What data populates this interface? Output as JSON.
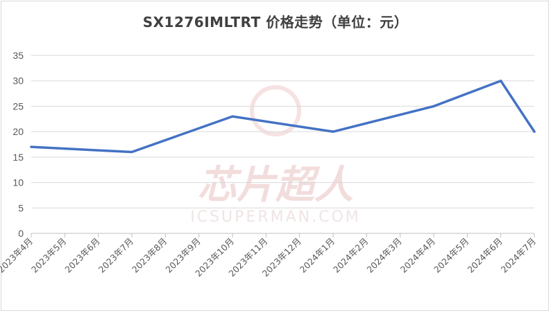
{
  "chart_data": {
    "type": "line",
    "title": "SX1276IMLTRT 价格走势（单位：元）",
    "xlabel": "",
    "ylabel": "",
    "categories": [
      "2023年4月",
      "2023年5月",
      "2023年6月",
      "2023年7月",
      "2023年8月",
      "2023年9月",
      "2023年10月",
      "2023年11月",
      "2023年12月",
      "2024年1月",
      "2024年2月",
      "2024年3月",
      "2024年4月",
      "2024年5月",
      "2024年6月",
      "2024年7月"
    ],
    "ylim": [
      0,
      35
    ],
    "yticks": [
      "0",
      "5",
      "10",
      "15",
      "20",
      "25",
      "30",
      "35"
    ],
    "points": [
      {
        "x": "2023年4月",
        "y": 17
      },
      {
        "x": "2023年7月",
        "y": 16
      },
      {
        "x": "2023年10月",
        "y": 23
      },
      {
        "x": "2024年1月",
        "y": 20
      },
      {
        "x": "2024年4月",
        "y": 25
      },
      {
        "x": "2024年6月",
        "y": 30
      },
      {
        "x": "2024年7月",
        "y": 20
      }
    ],
    "color": "#4472c4",
    "grid": true,
    "legend": "none"
  },
  "watermark": {
    "cn": "芯片超人",
    "en": "ICSUPERMAN.COM",
    "color": "#f2dcdc"
  }
}
